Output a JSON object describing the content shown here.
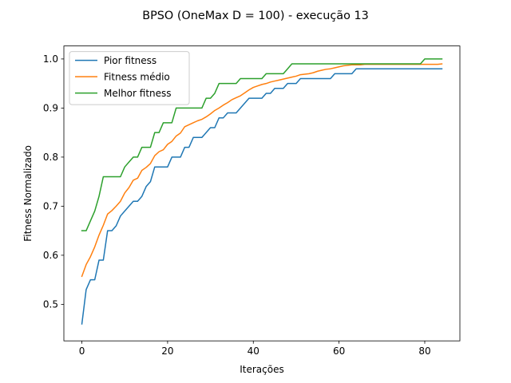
{
  "chart_data": {
    "type": "line",
    "title": "BPSO (OneMax D = 100) - execução 13",
    "xlabel": "Iterações",
    "ylabel": "Fitness Normalizado",
    "xlim": [
      -4.2,
      88.2
    ],
    "ylim": [
      0.4255,
      1.0265
    ],
    "xticks": [
      0,
      20,
      40,
      60,
      80
    ],
    "xtick_labels": [
      "0",
      "20",
      "40",
      "60",
      "80"
    ],
    "yticks": [
      0.5,
      0.6,
      0.7,
      0.8,
      0.9,
      1.0
    ],
    "ytick_labels": [
      "0.5",
      "0.6",
      "0.7",
      "0.8",
      "0.9",
      "1.0"
    ],
    "grid": false,
    "legend_position": "upper-left",
    "series": [
      {
        "name": "Pior fitness",
        "color": "#1f77b4",
        "x": [
          0,
          1,
          2,
          3,
          4,
          5,
          6,
          7,
          8,
          9,
          10,
          11,
          12,
          13,
          14,
          15,
          16,
          17,
          18,
          19,
          20,
          21,
          22,
          23,
          24,
          25,
          26,
          27,
          28,
          29,
          30,
          31,
          32,
          33,
          34,
          35,
          36,
          37,
          38,
          39,
          40,
          41,
          42,
          43,
          44,
          45,
          46,
          47,
          48,
          49,
          50,
          51,
          52,
          53,
          54,
          55,
          56,
          57,
          58,
          59,
          60,
          61,
          62,
          63,
          64,
          65,
          66,
          67,
          68,
          69,
          70,
          71,
          72,
          73,
          74,
          75,
          76,
          77,
          78,
          79,
          80,
          81,
          82,
          83,
          84
        ],
        "values": [
          0.46,
          0.53,
          0.55,
          0.55,
          0.59,
          0.59,
          0.65,
          0.65,
          0.66,
          0.68,
          0.69,
          0.7,
          0.71,
          0.71,
          0.72,
          0.74,
          0.75,
          0.78,
          0.78,
          0.78,
          0.78,
          0.8,
          0.8,
          0.8,
          0.82,
          0.82,
          0.84,
          0.84,
          0.84,
          0.85,
          0.86,
          0.86,
          0.88,
          0.88,
          0.89,
          0.89,
          0.89,
          0.9,
          0.91,
          0.92,
          0.92,
          0.92,
          0.92,
          0.93,
          0.93,
          0.94,
          0.94,
          0.94,
          0.95,
          0.95,
          0.95,
          0.96,
          0.96,
          0.96,
          0.96,
          0.96,
          0.96,
          0.96,
          0.96,
          0.97,
          0.97,
          0.97,
          0.97,
          0.97,
          0.98,
          0.98,
          0.98,
          0.98,
          0.98,
          0.98,
          0.98,
          0.98,
          0.98,
          0.98,
          0.98,
          0.98,
          0.98,
          0.98,
          0.98,
          0.98,
          0.98,
          0.98,
          0.98,
          0.98,
          0.98
        ]
      },
      {
        "name": "Fitness médio",
        "color": "#ff7f0e",
        "x": [
          0,
          1,
          2,
          3,
          4,
          5,
          6,
          7,
          8,
          9,
          10,
          11,
          12,
          13,
          14,
          15,
          16,
          17,
          18,
          19,
          20,
          21,
          22,
          23,
          24,
          25,
          26,
          27,
          28,
          29,
          30,
          31,
          32,
          33,
          34,
          35,
          36,
          37,
          38,
          39,
          40,
          41,
          42,
          43,
          44,
          45,
          46,
          47,
          48,
          49,
          50,
          51,
          52,
          53,
          54,
          55,
          56,
          57,
          58,
          59,
          60,
          61,
          62,
          63,
          64,
          65,
          66,
          67,
          68,
          69,
          70,
          71,
          72,
          73,
          74,
          75,
          76,
          77,
          78,
          79,
          80,
          81,
          82,
          83,
          84
        ],
        "values": [
          0.557,
          0.581,
          0.597,
          0.617,
          0.641,
          0.661,
          0.684,
          0.691,
          0.7,
          0.71,
          0.727,
          0.738,
          0.753,
          0.757,
          0.773,
          0.779,
          0.787,
          0.803,
          0.811,
          0.815,
          0.826,
          0.832,
          0.843,
          0.849,
          0.862,
          0.866,
          0.87,
          0.874,
          0.877,
          0.882,
          0.888,
          0.895,
          0.9,
          0.906,
          0.911,
          0.917,
          0.921,
          0.925,
          0.931,
          0.937,
          0.942,
          0.945,
          0.948,
          0.95,
          0.953,
          0.955,
          0.957,
          0.959,
          0.961,
          0.963,
          0.965,
          0.968,
          0.969,
          0.97,
          0.972,
          0.975,
          0.977,
          0.979,
          0.98,
          0.982,
          0.984,
          0.986,
          0.987,
          0.988,
          0.988,
          0.988,
          0.989,
          0.989,
          0.989,
          0.989,
          0.989,
          0.989,
          0.989,
          0.989,
          0.989,
          0.989,
          0.989,
          0.989,
          0.989,
          0.989,
          0.989,
          0.989,
          0.989,
          0.989,
          0.99
        ]
      },
      {
        "name": "Melhor fitness",
        "color": "#2ca02c",
        "x": [
          0,
          1,
          2,
          3,
          4,
          5,
          6,
          7,
          8,
          9,
          10,
          11,
          12,
          13,
          14,
          15,
          16,
          17,
          18,
          19,
          20,
          21,
          22,
          23,
          24,
          25,
          26,
          27,
          28,
          29,
          30,
          31,
          32,
          33,
          34,
          35,
          36,
          37,
          38,
          39,
          40,
          41,
          42,
          43,
          44,
          45,
          46,
          47,
          48,
          49,
          50,
          51,
          52,
          53,
          54,
          55,
          56,
          57,
          58,
          59,
          60,
          61,
          62,
          63,
          64,
          65,
          66,
          67,
          68,
          69,
          70,
          71,
          72,
          73,
          74,
          75,
          76,
          77,
          78,
          79,
          80,
          81,
          82,
          83,
          84
        ],
        "values": [
          0.65,
          0.65,
          0.67,
          0.69,
          0.72,
          0.76,
          0.76,
          0.76,
          0.76,
          0.76,
          0.78,
          0.79,
          0.8,
          0.8,
          0.82,
          0.82,
          0.82,
          0.85,
          0.85,
          0.87,
          0.87,
          0.87,
          0.9,
          0.9,
          0.9,
          0.9,
          0.9,
          0.9,
          0.9,
          0.92,
          0.92,
          0.93,
          0.95,
          0.95,
          0.95,
          0.95,
          0.95,
          0.96,
          0.96,
          0.96,
          0.96,
          0.96,
          0.96,
          0.97,
          0.97,
          0.97,
          0.97,
          0.97,
          0.98,
          0.99,
          0.99,
          0.99,
          0.99,
          0.99,
          0.99,
          0.99,
          0.99,
          0.99,
          0.99,
          0.99,
          0.99,
          0.99,
          0.99,
          0.99,
          0.99,
          0.99,
          0.99,
          0.99,
          0.99,
          0.99,
          0.99,
          0.99,
          0.99,
          0.99,
          0.99,
          0.99,
          0.99,
          0.99,
          0.99,
          0.99,
          1.0,
          1.0,
          1.0,
          1.0,
          1.0
        ]
      }
    ]
  }
}
